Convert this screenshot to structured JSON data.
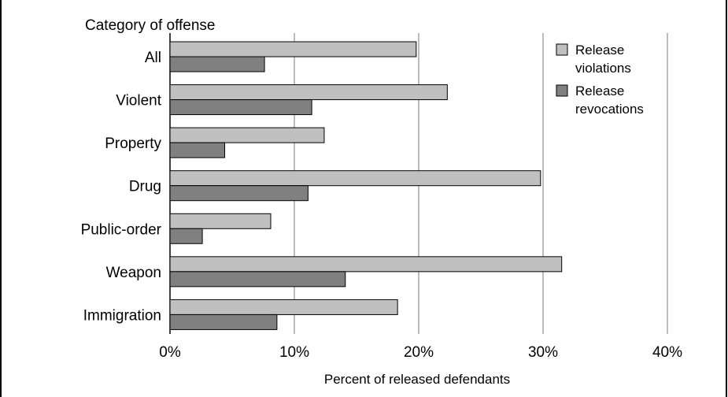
{
  "chart_data": {
    "type": "bar",
    "orientation": "horizontal",
    "ylabel": "Category of offense",
    "xlabel": "Percent of released defendants",
    "categories": [
      "All",
      "Violent",
      "Property",
      "Drug",
      "Public-order",
      "Weapon",
      "Immigration"
    ],
    "series": [
      {
        "name": "Release violations",
        "color": "#c0c0c0",
        "values": [
          19.8,
          22.3,
          12.4,
          29.8,
          8.1,
          31.5,
          18.3
        ]
      },
      {
        "name": "Release revocations",
        "color": "#808080",
        "values": [
          7.6,
          11.4,
          4.4,
          11.1,
          2.6,
          14.1,
          8.6
        ]
      }
    ],
    "xlim": [
      0,
      40
    ],
    "xticks": [
      "0%",
      "10%",
      "20%",
      "30%",
      "40%"
    ],
    "grid": true,
    "legend_position": "top-right",
    "legend_labels": [
      [
        "Release",
        "violations"
      ],
      [
        "Release",
        "revocations"
      ]
    ]
  }
}
